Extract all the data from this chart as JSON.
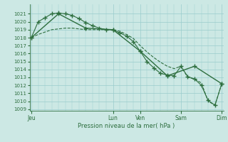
{
  "background_color": "#cce8e4",
  "grid_color": "#99cccc",
  "line_color": "#2d6e3e",
  "xlabel": "Pression niveau de la mer( hPa )",
  "ylim": [
    1009,
    1022
  ],
  "yticks": [
    1009,
    1010,
    1011,
    1012,
    1013,
    1014,
    1015,
    1016,
    1017,
    1018,
    1019,
    1020,
    1021
  ],
  "xtick_labels": [
    "Jeu",
    "Lun",
    "Ven",
    "Sam",
    "Dim"
  ],
  "xtick_positions": [
    0,
    48,
    64,
    88,
    112
  ],
  "vline_positions": [
    0,
    48,
    64,
    88,
    112
  ],
  "total_x": 112,
  "series1_x": [
    0,
    4,
    8,
    12,
    16,
    20,
    24,
    28,
    32,
    36,
    40,
    44,
    48,
    52,
    56,
    60,
    64,
    68,
    72,
    76,
    80,
    84,
    88,
    92,
    96,
    100,
    104,
    108,
    112
  ],
  "series1_y": [
    1018.0,
    1020.0,
    1020.5,
    1021.0,
    1021.1,
    1021.0,
    1020.8,
    1020.4,
    1019.9,
    1019.5,
    1019.2,
    1019.0,
    1019.0,
    1018.6,
    1018.2,
    1017.5,
    1016.3,
    1015.0,
    1014.2,
    1013.5,
    1013.3,
    1013.2,
    1014.4,
    1013.1,
    1012.8,
    1012.0,
    1010.1,
    1009.5,
    1012.2
  ],
  "series2_x": [
    0,
    4,
    8,
    12,
    16,
    20,
    24,
    28,
    32,
    36,
    40,
    44,
    48,
    52,
    56,
    60,
    64,
    68,
    72,
    76,
    80,
    84,
    88,
    92,
    96,
    100,
    104,
    108,
    112
  ],
  "series2_y": [
    1018.0,
    1018.4,
    1018.7,
    1019.0,
    1019.1,
    1019.2,
    1019.2,
    1019.1,
    1019.0,
    1019.0,
    1019.0,
    1019.0,
    1019.0,
    1018.8,
    1018.4,
    1017.9,
    1017.0,
    1016.2,
    1015.5,
    1014.9,
    1014.4,
    1014.1,
    1014.4,
    1013.0,
    1012.8,
    1012.3,
    1010.0,
    1009.5,
    1012.2
  ],
  "series3_x": [
    0,
    16,
    32,
    48,
    64,
    80,
    96,
    112
  ],
  "series3_y": [
    1018.0,
    1021.0,
    1019.2,
    1019.0,
    1016.3,
    1013.2,
    1014.4,
    1012.2
  ],
  "marker": "+",
  "markersize": 4,
  "linewidth_thin": 0.8,
  "linewidth_thick": 1.0
}
